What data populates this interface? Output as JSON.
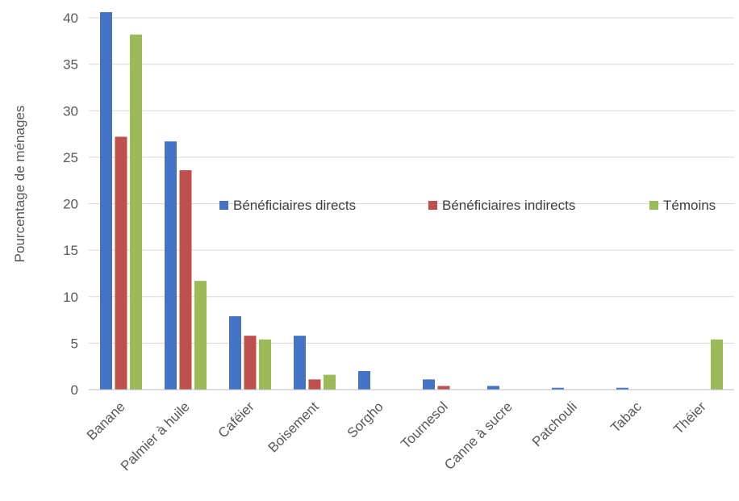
{
  "chart_data": {
    "type": "bar",
    "title": "",
    "xlabel": "",
    "ylabel": "Pourcentage de ménages",
    "ylim": [
      0,
      40
    ],
    "yticks": [
      0,
      5,
      10,
      15,
      20,
      25,
      30,
      35,
      40
    ],
    "grid": true,
    "legend_position": "center-right",
    "categories": [
      "Banane",
      "Palmier à huile",
      "Caféier",
      "Boisement",
      "Sorgho",
      "Tournesol",
      "Canne à sucre",
      "Patchouli",
      "Tabac",
      "Théier"
    ],
    "series": [
      {
        "name": "Bénéficiaires directs",
        "color": "#4472C4",
        "values": [
          40.6,
          26.7,
          7.9,
          5.8,
          2.0,
          1.1,
          0.4,
          0.2,
          0.2,
          0
        ]
      },
      {
        "name": "Bénéficiaires indirects",
        "color": "#C0504D",
        "values": [
          27.2,
          23.6,
          5.8,
          1.1,
          0,
          0.4,
          0,
          0,
          0,
          0
        ]
      },
      {
        "name": "Témoins",
        "color": "#9BBB59",
        "values": [
          38.2,
          11.7,
          5.4,
          1.6,
          0,
          0,
          0,
          0,
          0,
          5.4
        ]
      }
    ]
  }
}
